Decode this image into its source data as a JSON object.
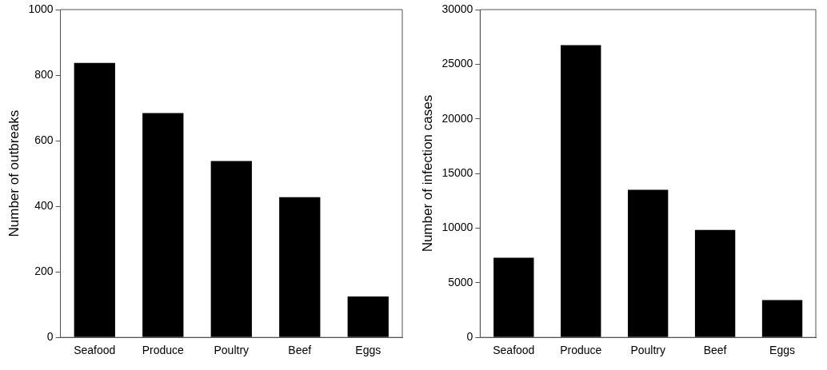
{
  "chart_data": [
    {
      "type": "bar",
      "ylabel": "Number of outbreaks",
      "categories": [
        "Seafood",
        "Produce",
        "Poultry",
        "Beef",
        "Eggs"
      ],
      "values": [
        837,
        684,
        538,
        428,
        125
      ],
      "color": "#000000",
      "ylim": [
        0,
        1000
      ],
      "yticks": [
        0,
        200,
        400,
        600,
        800,
        1000
      ],
      "grid": false,
      "legend": false
    },
    {
      "type": "bar",
      "ylabel": "Number of infection cases",
      "categories": [
        "Seafood",
        "Produce",
        "Poultry",
        "Beef",
        "Eggs"
      ],
      "values": [
        7290,
        26750,
        13500,
        9830,
        3420
      ],
      "color": "#000000",
      "ylim": [
        0,
        30000
      ],
      "yticks": [
        0,
        5000,
        10000,
        15000,
        20000,
        25000,
        30000
      ],
      "grid": false,
      "legend": false
    }
  ]
}
